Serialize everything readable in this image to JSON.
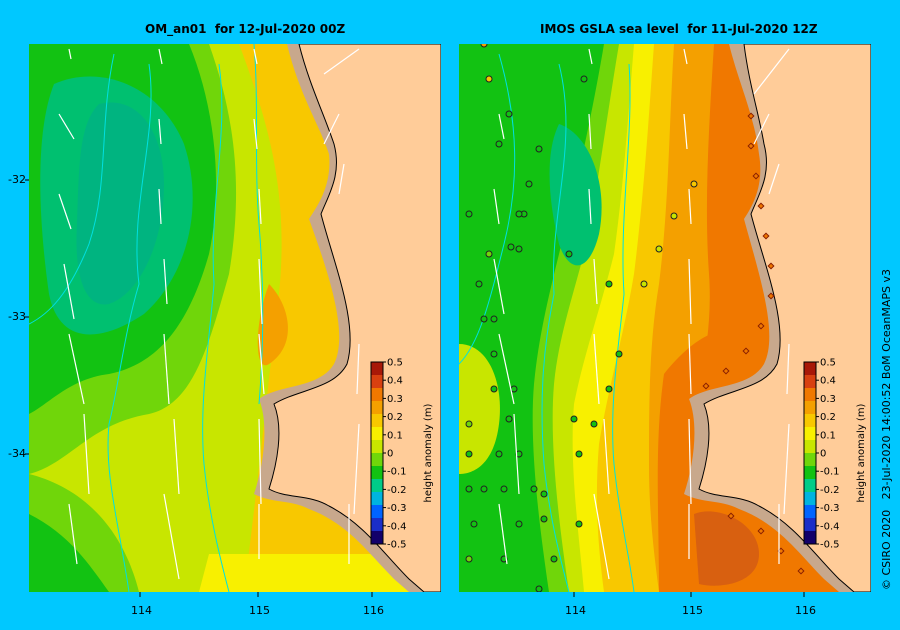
{
  "panels": [
    {
      "title": "OM_an01  for 12-Jul-2020 00Z"
    },
    {
      "title": "IMOS GSLA sea level  for 11-Jul-2020 12Z"
    }
  ],
  "axes": {
    "y_ticks": [
      "-32",
      "-33",
      "-34"
    ],
    "x_ticks": [
      "114",
      "115",
      "116"
    ]
  },
  "colorbar": {
    "label": "height anomaly (m)",
    "ticks": [
      "0.5",
      "0.4",
      "0.3",
      "0.2",
      "0.1",
      "0",
      "-0.1",
      "-0.2",
      "-0.3",
      "-0.4",
      "-0.5"
    ],
    "colors": [
      "#12006a",
      "#1a2ec8",
      "#0064ff",
      "#00b4e0",
      "#00cc88",
      "#12c212",
      "#70d60a",
      "#c8e600",
      "#f8f000",
      "#f8c800",
      "#f4a000",
      "#f07800",
      "#d84010",
      "#a81808"
    ]
  },
  "credit": "© CSIRO 2020   23-Jul-2020 14:00:52 BoM OceanMAPS v3",
  "colors": {
    "background": "#00c8ff",
    "land": "#ffcc99",
    "shelf": "#c8a88c"
  }
}
